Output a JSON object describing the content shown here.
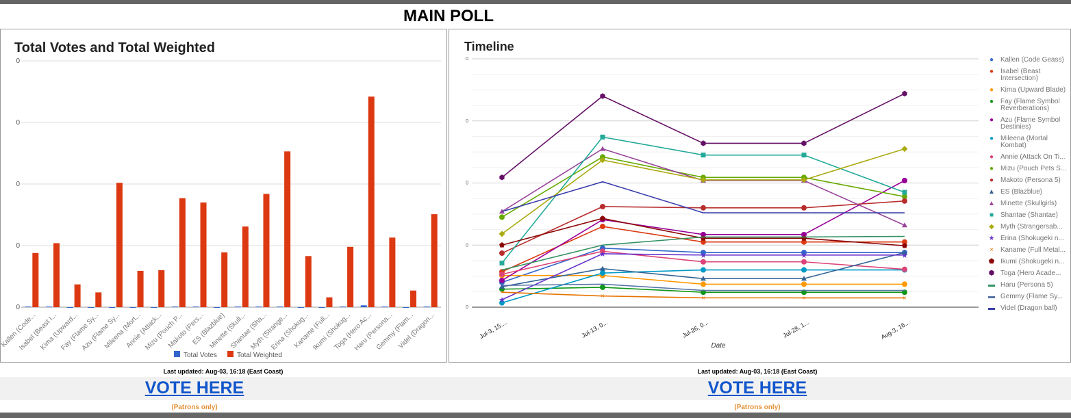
{
  "page_title": "MAIN POLL",
  "footer": {
    "updated": "Last updated: Aug-03, 16:18 (East Coast)",
    "vote": "VOTE HERE",
    "patrons": "(Patrons only)"
  },
  "chart_data": [
    {
      "type": "bar",
      "title": "Total Votes and Total Weighted",
      "ylim": [
        0,
        400
      ],
      "yticks": [
        "0",
        "0",
        "0",
        "0",
        "0"
      ],
      "categories": [
        "Kallen (Code...",
        "Isabel (Beast I...",
        "Kima (Upward...",
        "Fay (Flame Sy...",
        "Azu (Flame Sy...",
        "Mileena (Mort...",
        "Annie (Attack...",
        "Mizu (Pouch P...",
        "Makoto (Pers...",
        "ES (Blazblue)",
        "Minette (Skull...",
        "Shantae (Sha...",
        "Myth (Strange...",
        "Erina (Shokug...",
        "Kaname (Full...",
        "Ikumi (Shokug...",
        "Toga (Hero Ac...",
        "Haru (Persona...",
        "Gemmy (Flam...",
        "Videl (Dragon..."
      ],
      "series": [
        {
          "name": "Total Votes",
          "color": "#3366cc",
          "values": [
            1,
            1,
            0,
            0,
            0,
            0,
            0,
            1,
            1,
            0,
            1,
            1,
            1,
            0,
            0,
            1,
            3,
            1,
            0,
            1
          ]
        },
        {
          "name": "Total Weighted",
          "color": "#dc3912",
          "values": [
            88,
            104,
            37,
            24,
            202,
            59,
            60,
            177,
            170,
            89,
            131,
            184,
            253,
            83,
            16,
            98,
            342,
            113,
            27,
            151
          ]
        }
      ],
      "legend": "bottom"
    },
    {
      "type": "line",
      "title": "Timeline",
      "xlabel": "Date",
      "ylim": [
        0,
        400
      ],
      "yticks": [
        "0",
        "0",
        "0",
        "0",
        "0"
      ],
      "x": [
        "Jul-3, 15:...",
        "Jul-13, 0...",
        "Jul-26, 0...",
        "Jul-28, 1...",
        "Aug-3, 16..."
      ],
      "legend": "right",
      "series": [
        {
          "name": "Kallen (Code Geass)",
          "color": "#3366cc",
          "marker": "circle",
          "values": [
            40,
            95,
            88,
            88,
            88
          ]
        },
        {
          "name": "Isabel (Beast Intersection)",
          "color": "#dc3912",
          "marker": "circle",
          "values": [
            57,
            130,
            105,
            105,
            105
          ]
        },
        {
          "name": "Kima (Upward Blade)",
          "color": "#ff9900",
          "marker": "circle",
          "values": [
            51,
            51,
            37,
            37,
            37
          ]
        },
        {
          "name": "Fay (Flame Symbol Reverberations)",
          "color": "#109618",
          "marker": "circle",
          "values": [
            29,
            32,
            24,
            24,
            24
          ]
        },
        {
          "name": "Azu (Flame Symbol Destinies)",
          "color": "#990099",
          "marker": "circle",
          "values": [
            43,
            141,
            117,
            117,
            204
          ]
        },
        {
          "name": "Mileena (Mortal Kombat)",
          "color": "#0099c6",
          "marker": "circle",
          "values": [
            7,
            55,
            60,
            60,
            60
          ]
        },
        {
          "name": "Annie (Attack On Ti...",
          "color": "#dd4477",
          "marker": "circle",
          "values": [
            53,
            90,
            73,
            73,
            61
          ]
        },
        {
          "name": "Mizu (Pouch Pets S...",
          "color": "#66aa00",
          "marker": "circle",
          "values": [
            145,
            242,
            209,
            209,
            178
          ]
        },
        {
          "name": "Makoto (Persona 5)",
          "color": "#b82e2e",
          "marker": "circle",
          "values": [
            87,
            162,
            160,
            160,
            171
          ]
        },
        {
          "name": "ES (Blazblue)",
          "color": "#316395",
          "marker": "triangle",
          "values": [
            33,
            62,
            46,
            46,
            88
          ]
        },
        {
          "name": "Minette (Skullgirls)",
          "color": "#994499",
          "marker": "triangle",
          "values": [
            154,
            255,
            204,
            204,
            132
          ]
        },
        {
          "name": "Shantae (Shantae)",
          "color": "#22aa99",
          "marker": "square",
          "values": [
            71,
            274,
            245,
            245,
            185
          ]
        },
        {
          "name": "Myth (Strangersab...",
          "color": "#aaaa11",
          "marker": "diamond",
          "values": [
            118,
            237,
            205,
            205,
            255
          ]
        },
        {
          "name": "Erina (Shokugeki n...",
          "color": "#6633cc",
          "marker": "star",
          "values": [
            12,
            86,
            84,
            84,
            84
          ]
        },
        {
          "name": "Kaname (Full Metal...",
          "color": "#e67300",
          "marker": "x",
          "values": [
            24,
            18,
            15,
            15,
            15
          ]
        },
        {
          "name": "Ikumi (Shokugeki n...",
          "color": "#8b0707",
          "marker": "pentagon",
          "values": [
            100,
            143,
            111,
            111,
            99
          ]
        },
        {
          "name": "Toga (Hero Acade...",
          "color": "#651067",
          "marker": "hexagon",
          "values": [
            209,
            340,
            264,
            264,
            344
          ]
        },
        {
          "name": "Haru (Persona 5)",
          "color": "#329262",
          "marker": "line",
          "values": [
            60,
            100,
            113,
            113,
            114
          ]
        },
        {
          "name": "Gemmy (Flame Sy...",
          "color": "#5574a6",
          "marker": "line",
          "values": [
            35,
            37,
            27,
            27,
            27
          ]
        },
        {
          "name": "Videl (Dragon ball)",
          "color": "#3b3eac",
          "marker": "line",
          "values": [
            154,
            202,
            152,
            152,
            152
          ]
        }
      ]
    }
  ]
}
